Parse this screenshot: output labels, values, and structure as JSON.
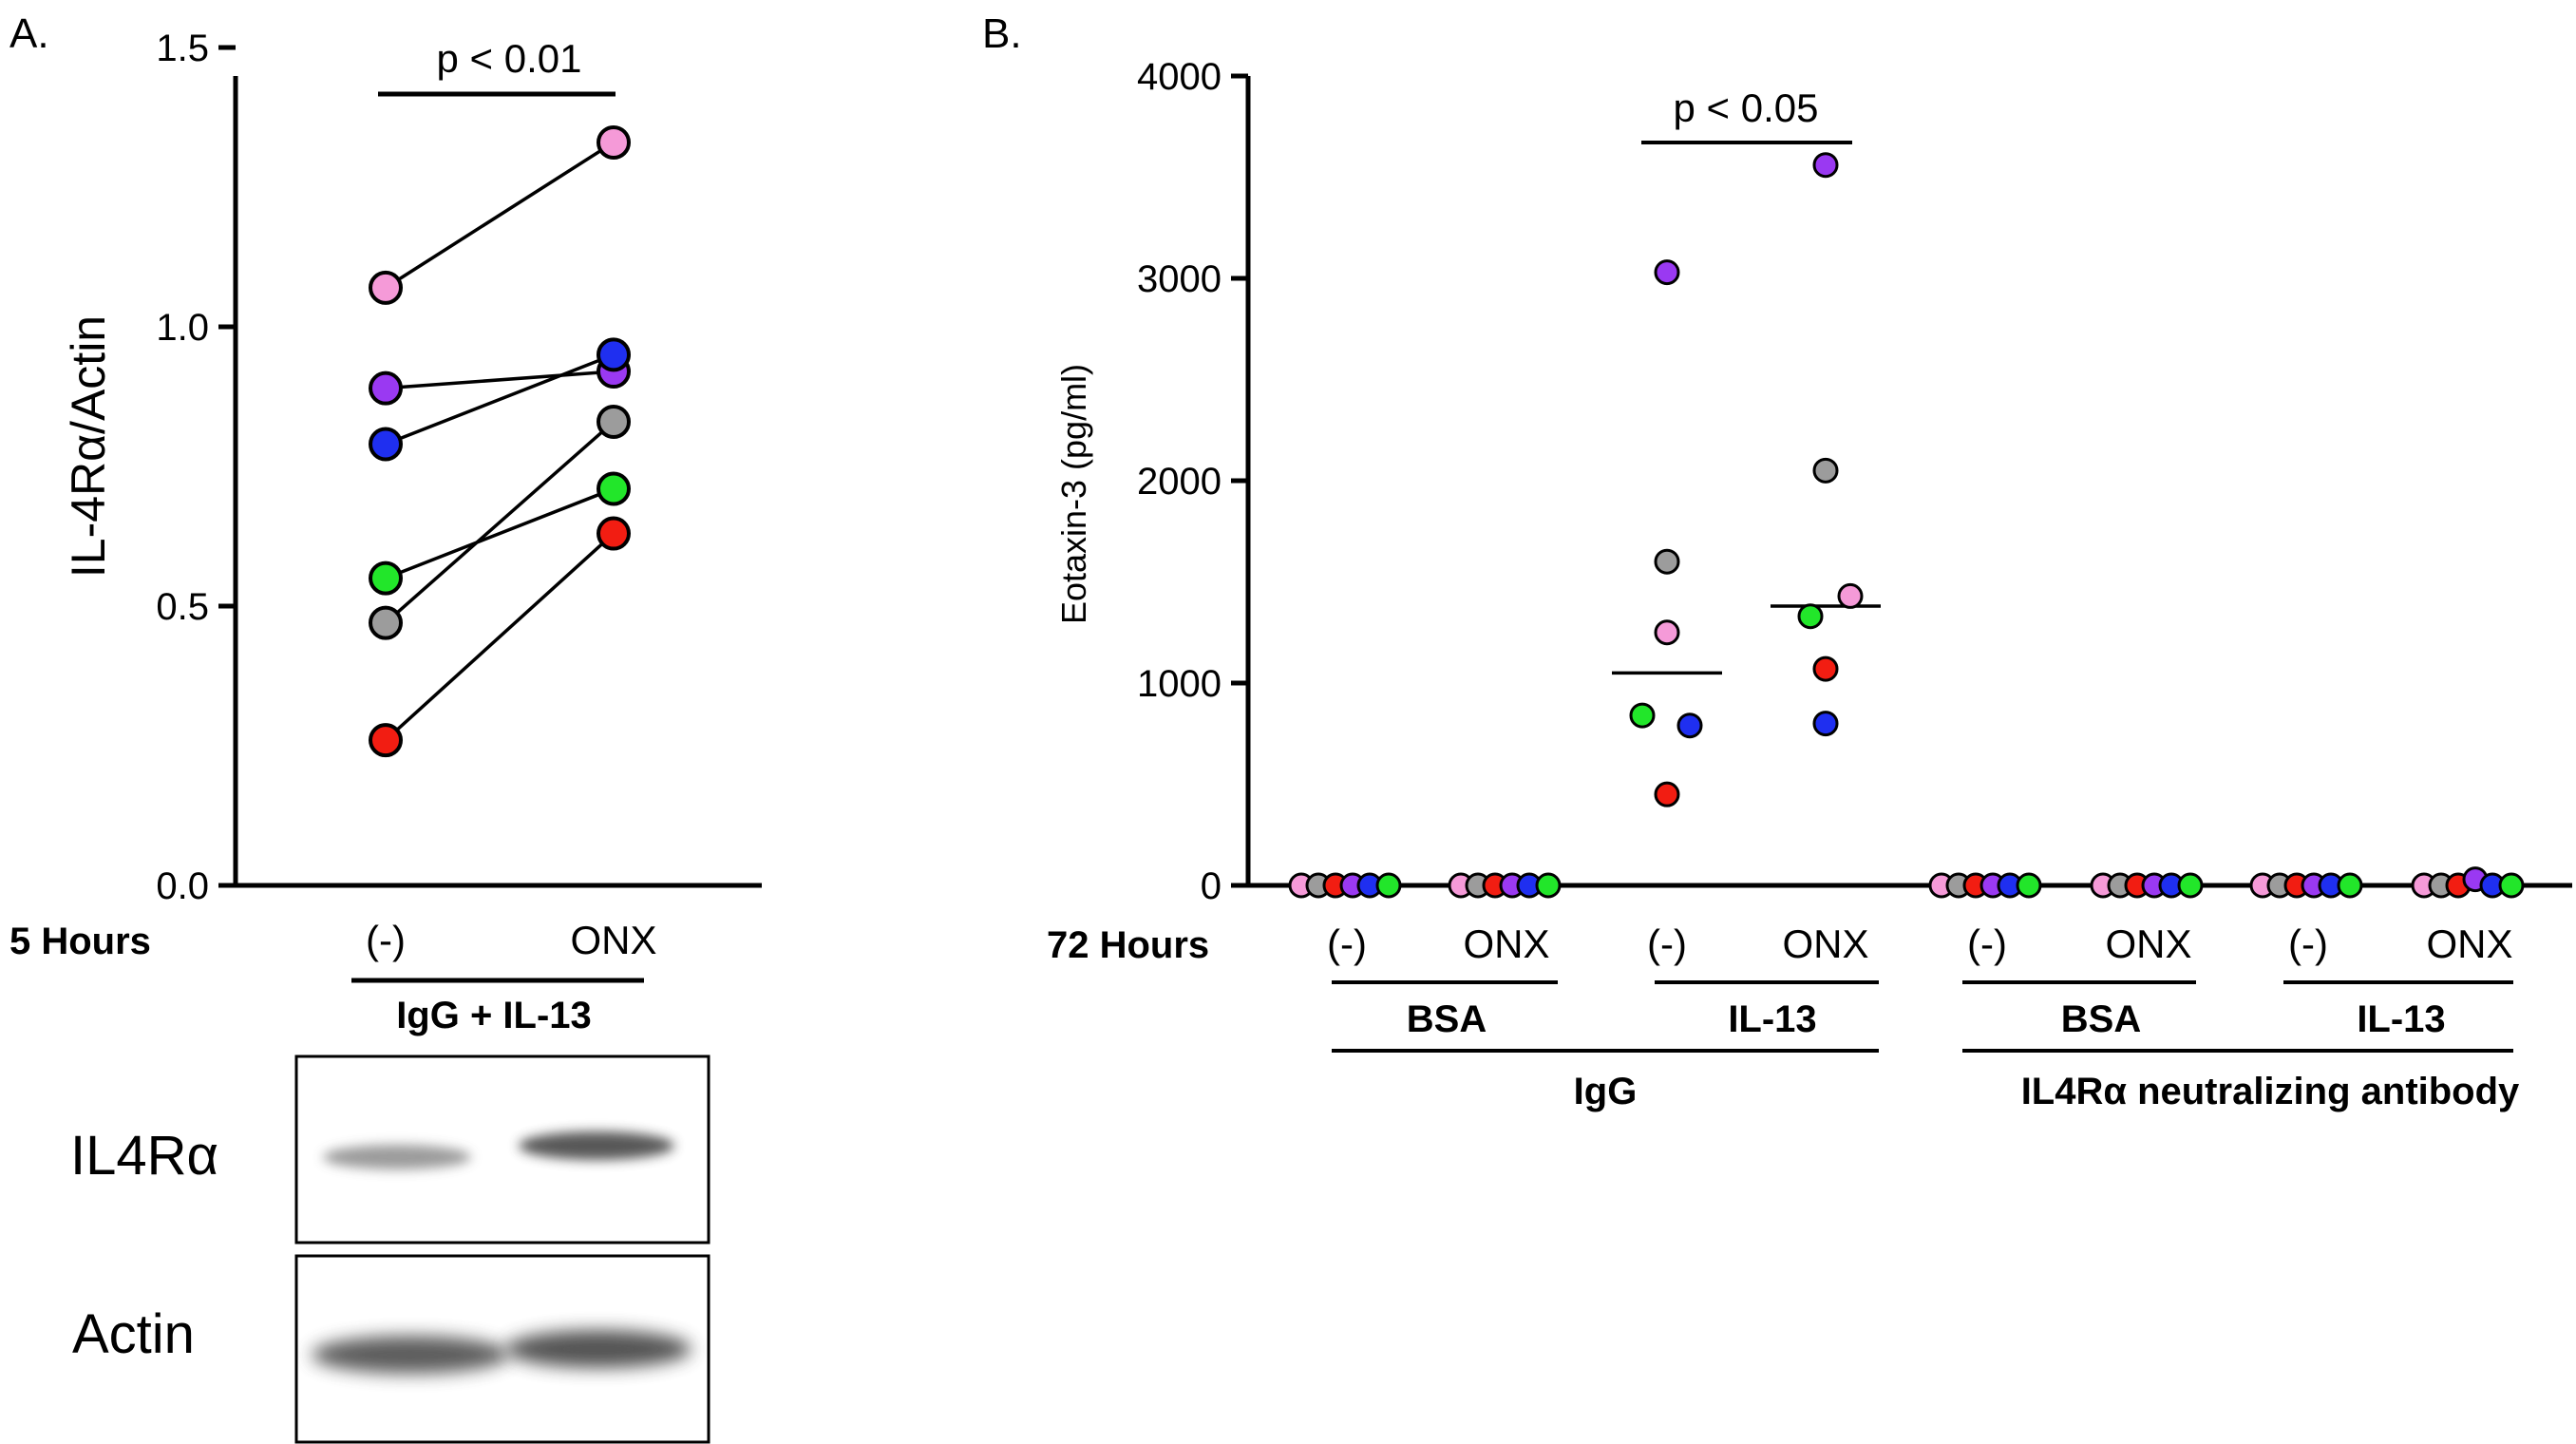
{
  "colors": {
    "pink": "#f59ad8",
    "purple": "#9a39f2",
    "blue": "#1f2ff0",
    "green": "#22e62a",
    "gray": "#9c9c9c",
    "red": "#f21d12",
    "axis": "#000000"
  },
  "panel_a": {
    "label": "A.",
    "ylabel": "IL-4Rα/Actin",
    "time_label": "5 Hours",
    "group_label": "IgG + IL-13",
    "significance": "p < 0.01",
    "blot_labels": [
      "IL4Rα",
      "Actin"
    ]
  },
  "panel_b": {
    "label": "B.",
    "ylabel": "Eotaxin-3 (pg/ml)",
    "time_label": "72 Hours",
    "significance": "p < 0.05",
    "treatment_labels": [
      "BSA",
      "IL-13",
      "BSA",
      "IL-13"
    ],
    "antibody_labels": [
      "IgG",
      "IL4Rα neutralizing antibody"
    ]
  },
  "chart_data": [
    {
      "type": "line",
      "title": "",
      "xlabel": "",
      "ylabel": "IL-4Rα/Actin",
      "categories": [
        "(-)",
        "ONX"
      ],
      "ylim": [
        0,
        1.5
      ],
      "yticks": [
        "0.0",
        "0.5",
        "1.0",
        "1.5"
      ],
      "series": [
        {
          "name": "pink",
          "color": "pink",
          "values": [
            1.07,
            1.33
          ]
        },
        {
          "name": "purple",
          "color": "purple",
          "values": [
            0.89,
            0.92
          ]
        },
        {
          "name": "blue",
          "color": "blue",
          "values": [
            0.79,
            0.95
          ]
        },
        {
          "name": "green",
          "color": "green",
          "values": [
            0.55,
            0.71
          ]
        },
        {
          "name": "gray",
          "color": "gray",
          "values": [
            0.47,
            0.83
          ]
        },
        {
          "name": "red",
          "color": "red",
          "values": [
            0.26,
            0.63
          ]
        }
      ]
    },
    {
      "type": "scatter",
      "title": "",
      "xlabel": "",
      "ylabel": "Eotaxin-3 (pg/ml)",
      "ylim": [
        0,
        4000
      ],
      "yticks": [
        "0",
        "1000",
        "2000",
        "3000",
        "4000"
      ],
      "categories": [
        "(-)",
        "ONX",
        "(-)",
        "ONX",
        "(-)",
        "ONX",
        "(-)",
        "ONX"
      ],
      "groups": [
        {
          "category": "(-)",
          "treatment": "BSA",
          "antibody": "IgG",
          "mean": 0,
          "points": [
            {
              "c": "pink",
              "v": 0
            },
            {
              "c": "gray",
              "v": 0
            },
            {
              "c": "red",
              "v": 0
            },
            {
              "c": "purple",
              "v": 0
            },
            {
              "c": "blue",
              "v": 0
            },
            {
              "c": "green",
              "v": 0
            }
          ]
        },
        {
          "category": "ONX",
          "treatment": "BSA",
          "antibody": "IgG",
          "mean": 0,
          "points": [
            {
              "c": "pink",
              "v": 0
            },
            {
              "c": "gray",
              "v": 0
            },
            {
              "c": "red",
              "v": 0
            },
            {
              "c": "purple",
              "v": 0
            },
            {
              "c": "blue",
              "v": 0
            },
            {
              "c": "green",
              "v": 0
            }
          ]
        },
        {
          "category": "(-)",
          "treatment": "IL-13",
          "antibody": "IgG",
          "mean": 1050,
          "points": [
            {
              "c": "purple",
              "v": 3030
            },
            {
              "c": "gray",
              "v": 1600
            },
            {
              "c": "pink",
              "v": 1250
            },
            {
              "c": "green",
              "v": 840
            },
            {
              "c": "blue",
              "v": 790
            },
            {
              "c": "red",
              "v": 450
            }
          ]
        },
        {
          "category": "ONX",
          "treatment": "IL-13",
          "antibody": "IgG",
          "mean": 1380,
          "points": [
            {
              "c": "purple",
              "v": 3560
            },
            {
              "c": "gray",
              "v": 2050
            },
            {
              "c": "pink",
              "v": 1430
            },
            {
              "c": "green",
              "v": 1330
            },
            {
              "c": "red",
              "v": 1070
            },
            {
              "c": "blue",
              "v": 800
            }
          ]
        },
        {
          "category": "(-)",
          "treatment": "BSA",
          "antibody": "IL4Rα neutralizing antibody",
          "mean": 0,
          "points": [
            {
              "c": "pink",
              "v": 0
            },
            {
              "c": "gray",
              "v": 0
            },
            {
              "c": "red",
              "v": 0
            },
            {
              "c": "purple",
              "v": 0
            },
            {
              "c": "blue",
              "v": 0
            },
            {
              "c": "green",
              "v": 0
            }
          ]
        },
        {
          "category": "ONX",
          "treatment": "BSA",
          "antibody": "IL4Rα neutralizing antibody",
          "mean": 0,
          "points": [
            {
              "c": "pink",
              "v": 0
            },
            {
              "c": "gray",
              "v": 0
            },
            {
              "c": "red",
              "v": 0
            },
            {
              "c": "purple",
              "v": 0
            },
            {
              "c": "blue",
              "v": 0
            },
            {
              "c": "green",
              "v": 0
            }
          ]
        },
        {
          "category": "(-)",
          "treatment": "IL-13",
          "antibody": "IL4Rα neutralizing antibody",
          "mean": 0,
          "points": [
            {
              "c": "pink",
              "v": 0
            },
            {
              "c": "gray",
              "v": 0
            },
            {
              "c": "red",
              "v": 0
            },
            {
              "c": "purple",
              "v": 0
            },
            {
              "c": "blue",
              "v": 0
            },
            {
              "c": "green",
              "v": 0
            }
          ]
        },
        {
          "category": "ONX",
          "treatment": "IL-13",
          "antibody": "IL4Rα neutralizing antibody",
          "mean": 0,
          "points": [
            {
              "c": "pink",
              "v": 0
            },
            {
              "c": "gray",
              "v": 0
            },
            {
              "c": "red",
              "v": 0
            },
            {
              "c": "purple",
              "v": 30
            },
            {
              "c": "blue",
              "v": 0
            },
            {
              "c": "green",
              "v": 0
            }
          ]
        }
      ]
    }
  ]
}
